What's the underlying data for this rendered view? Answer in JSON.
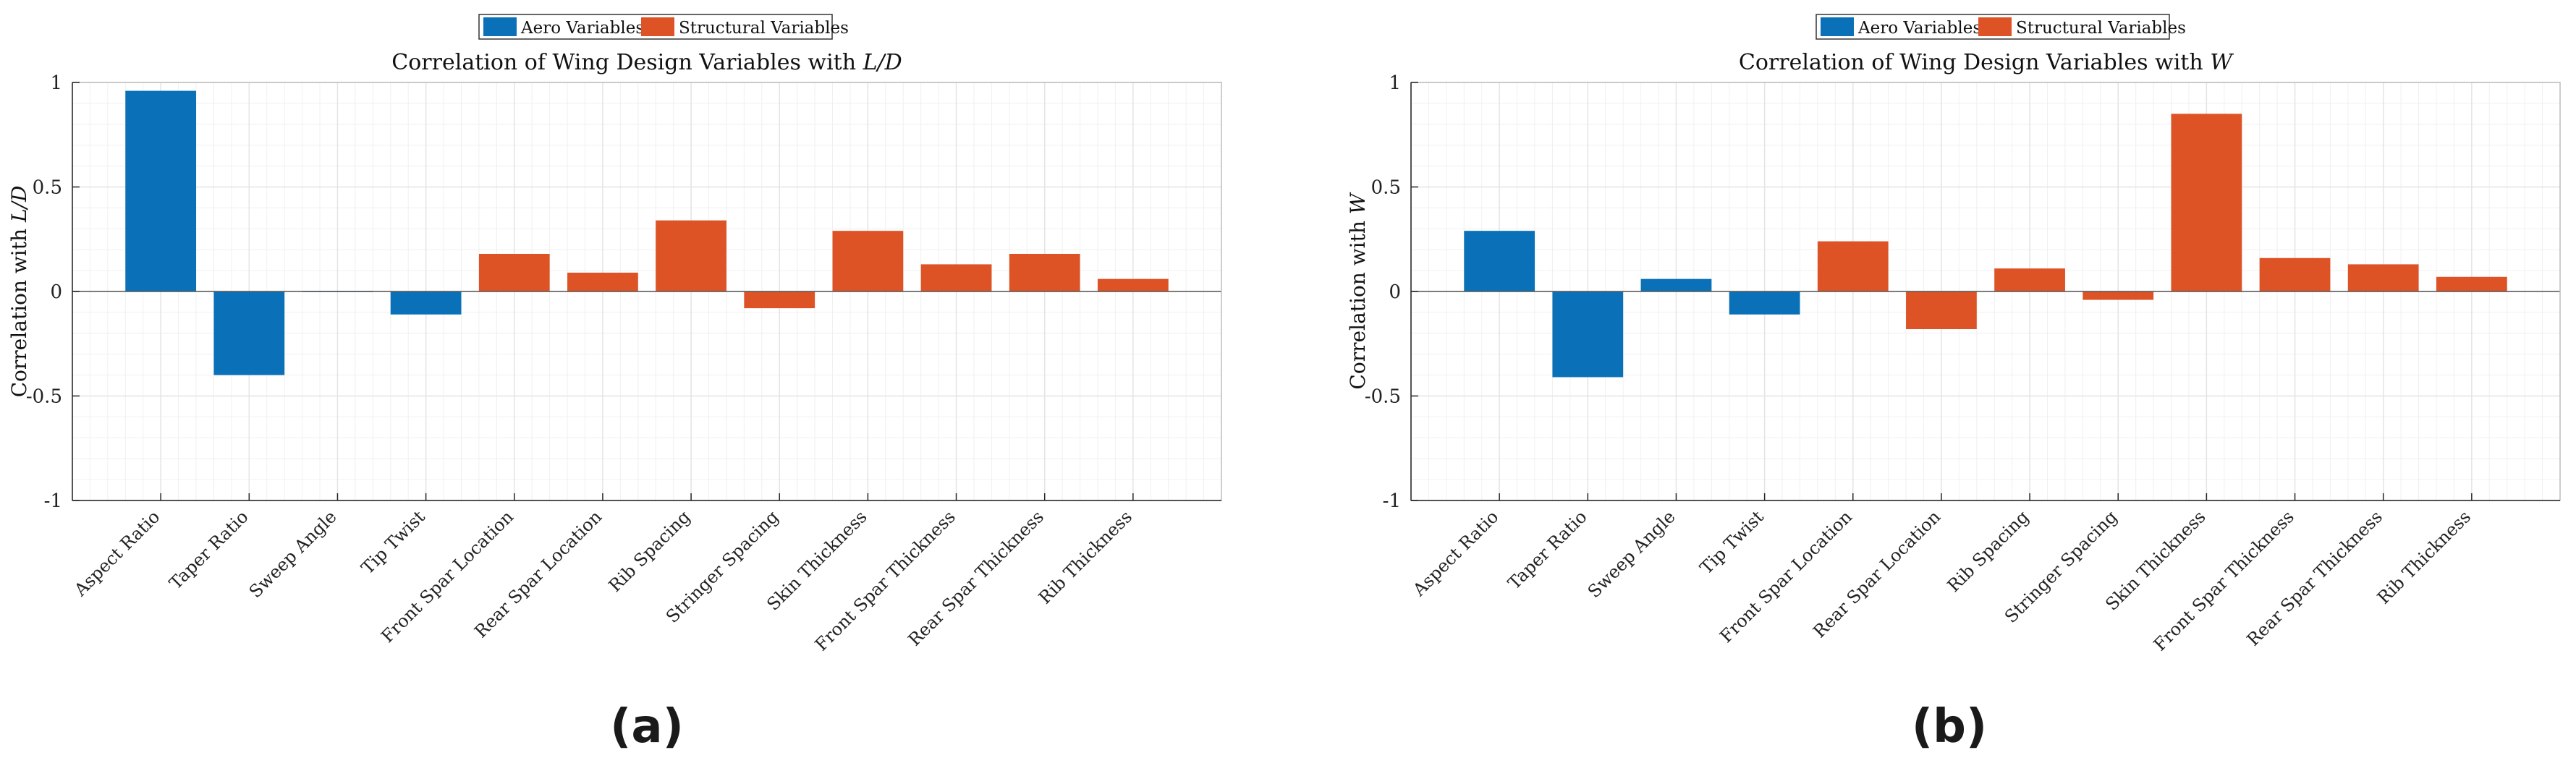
{
  "colors": {
    "aero": "#0a71b9",
    "structural": "#dd5326",
    "grid": "#e4e4e4",
    "axis": "#262626"
  },
  "chart_data": [
    {
      "type": "bar",
      "title_prefix": "Correlation of Wing Design Variables with ",
      "title_var": "L/D",
      "ylabel_prefix": "Correlation with ",
      "ylabel_var": "L/D",
      "xlabel": "",
      "ylim": [
        -1,
        1
      ],
      "yticks": [
        -1,
        -0.5,
        0,
        0.5,
        1
      ],
      "grid": true,
      "legend": {
        "placement": "top",
        "entries": [
          "Aero Variables",
          "Structural Variables"
        ]
      },
      "categories": [
        "Aspect Ratio",
        "Taper Ratio",
        "Sweep Angle",
        "Tip Twist",
        "Front Spar Location",
        "Rear Spar Location",
        "Rib Spacing",
        "Stringer Spacing",
        "Skin Thickness",
        "Front Spar Thickness",
        "Rear Spar Thickness",
        "Rib Thickness"
      ],
      "groups": [
        "aero",
        "aero",
        "aero",
        "aero",
        "structural",
        "structural",
        "structural",
        "structural",
        "structural",
        "structural",
        "structural",
        "structural"
      ],
      "values": [
        0.96,
        -0.4,
        0.0,
        -0.11,
        0.18,
        0.09,
        0.34,
        -0.08,
        0.29,
        0.13,
        0.18,
        0.06
      ],
      "caption": "(a)"
    },
    {
      "type": "bar",
      "title_prefix": "Correlation of Wing Design Variables with ",
      "title_var": "W",
      "ylabel_prefix": "Correlation with ",
      "ylabel_var": "W",
      "xlabel": "",
      "ylim": [
        -1,
        1
      ],
      "yticks": [
        -1,
        -0.5,
        0,
        0.5,
        1
      ],
      "grid": true,
      "legend": {
        "placement": "top",
        "entries": [
          "Aero Variables",
          "Structural Variables"
        ]
      },
      "categories": [
        "Aspect Ratio",
        "Taper Ratio",
        "Sweep Angle",
        "Tip Twist",
        "Front Spar Location",
        "Rear Spar Location",
        "Rib Spacing",
        "Stringer Spacing",
        "Skin Thickness",
        "Front Spar Thickness",
        "Rear Spar Thickness",
        "Rib Thickness"
      ],
      "groups": [
        "aero",
        "aero",
        "aero",
        "aero",
        "structural",
        "structural",
        "structural",
        "structural",
        "structural",
        "structural",
        "structural",
        "structural"
      ],
      "values": [
        0.29,
        -0.41,
        0.06,
        -0.11,
        0.24,
        -0.18,
        0.11,
        -0.04,
        0.85,
        0.16,
        0.13,
        0.07
      ],
      "caption": "(b)"
    }
  ]
}
